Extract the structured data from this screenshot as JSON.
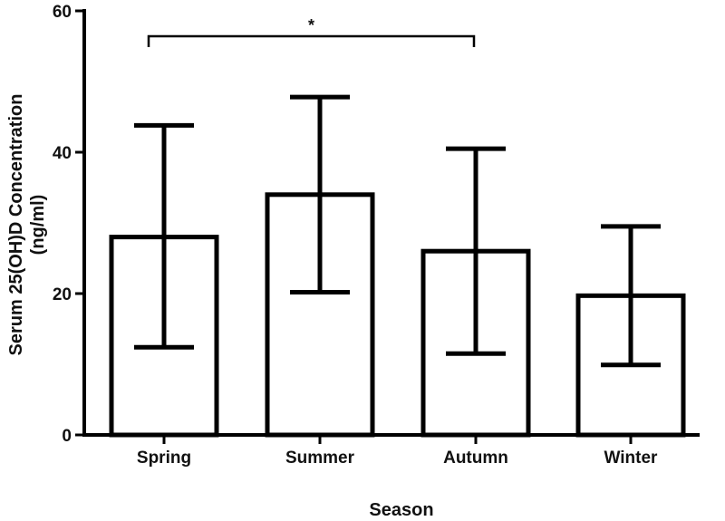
{
  "chart_data": {
    "type": "bar",
    "categories": [
      "Spring",
      "Summer",
      "Autumn",
      "Winter"
    ],
    "series": [
      {
        "values": [
          28,
          34,
          26,
          19.7
        ],
        "error_low": [
          12.4,
          20.2,
          11.5,
          9.9
        ],
        "error_high": [
          43.8,
          47.8,
          40.5,
          29.5
        ]
      }
    ],
    "yticks": [
      0,
      20,
      40,
      60
    ],
    "ylim": [
      0,
      60
    ],
    "xlabel": "Season",
    "ylabel_line1": "Serum 25(OH)D Concentration",
    "ylabel_line2": "(ng/ml)",
    "grid": false,
    "bar_fill": "#ffffff",
    "stroke_color": "#000000",
    "significance": [
      {
        "from": "Spring",
        "to": "Autumn",
        "label": "*"
      }
    ]
  }
}
